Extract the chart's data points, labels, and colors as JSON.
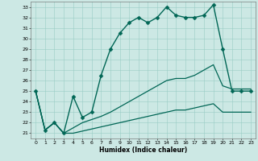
{
  "xlabel": "Humidex (Indice chaleur)",
  "bg_color": "#cce8e4",
  "grid_color": "#99ccc4",
  "line_color": "#006655",
  "xlim": [
    -0.5,
    23.5
  ],
  "ylim": [
    20.5,
    33.5
  ],
  "yticks": [
    21,
    22,
    23,
    24,
    25,
    26,
    27,
    28,
    29,
    30,
    31,
    32,
    33
  ],
  "xticks": [
    0,
    1,
    2,
    3,
    4,
    5,
    6,
    7,
    8,
    9,
    10,
    11,
    12,
    13,
    14,
    15,
    16,
    17,
    18,
    19,
    20,
    21,
    22,
    23
  ],
  "series": [
    {
      "x": [
        0,
        1,
        2,
        3,
        4,
        5,
        6,
        7,
        8,
        9,
        10,
        11,
        12,
        13,
        14,
        15,
        16,
        17,
        18,
        19,
        20,
        21,
        22,
        23
      ],
      "y": [
        25,
        21.3,
        22,
        21,
        24.5,
        22.5,
        23,
        26.5,
        29,
        30.5,
        31.5,
        32,
        31.5,
        32,
        33,
        32.2,
        32,
        32,
        32.2,
        33.2,
        29,
        25,
        25,
        25
      ],
      "marker": "D",
      "markersize": 2.5,
      "linewidth": 1.0
    },
    {
      "x": [
        0,
        1,
        2,
        3,
        4,
        5,
        6,
        7,
        8,
        9,
        10,
        11,
        12,
        13,
        14,
        15,
        16,
        17,
        18,
        19,
        20,
        21,
        22,
        23
      ],
      "y": [
        25,
        21.3,
        22,
        21,
        21.5,
        22,
        22.3,
        22.6,
        23,
        23.5,
        24,
        24.5,
        25,
        25.5,
        26,
        26.2,
        26.2,
        26.5,
        27,
        27.5,
        25.5,
        25.2,
        25.2,
        25.2
      ],
      "marker": null,
      "linewidth": 0.9
    },
    {
      "x": [
        0,
        1,
        2,
        3,
        4,
        5,
        6,
        7,
        8,
        9,
        10,
        11,
        12,
        13,
        14,
        15,
        16,
        17,
        18,
        19,
        20,
        21,
        22,
        23
      ],
      "y": [
        25,
        21.3,
        22,
        21,
        21.0,
        21.2,
        21.4,
        21.6,
        21.8,
        22.0,
        22.2,
        22.4,
        22.6,
        22.8,
        23.0,
        23.2,
        23.2,
        23.4,
        23.6,
        23.8,
        23.0,
        23.0,
        23.0,
        23.0
      ],
      "marker": null,
      "linewidth": 0.9
    }
  ]
}
